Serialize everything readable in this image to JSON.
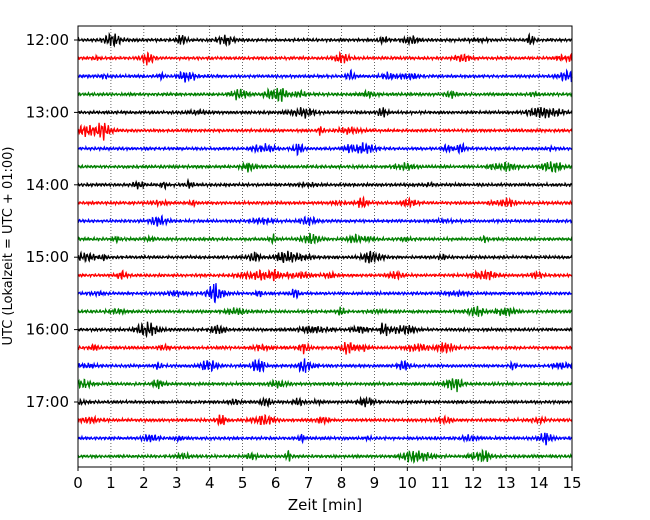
{
  "chart_data": {
    "type": "line",
    "title": "",
    "xlabel": "Zeit  [min]",
    "ylabel": "UTC (Lokalzeit = UTC + 01:00)",
    "xlim": [
      0,
      15
    ],
    "x_ticks": [
      "0",
      "1",
      "2",
      "3",
      "4",
      "5",
      "6",
      "7",
      "8",
      "9",
      "10",
      "11",
      "12",
      "13",
      "14",
      "15"
    ],
    "y_ticks": [
      "12:00",
      "13:00",
      "14:00",
      "15:00",
      "16:00",
      "17:00"
    ],
    "grid": "vertical dotted at each minute",
    "trace_interval_minutes": 15,
    "trace_colors": [
      "#000000",
      "#ff0000",
      "#0000ff",
      "#008000"
    ],
    "series": [
      {
        "start": "12:00",
        "color": "#000000"
      },
      {
        "start": "12:15",
        "color": "#ff0000"
      },
      {
        "start": "12:30",
        "color": "#0000ff"
      },
      {
        "start": "12:45",
        "color": "#008000"
      },
      {
        "start": "13:00",
        "color": "#000000"
      },
      {
        "start": "13:15",
        "color": "#ff0000"
      },
      {
        "start": "13:30",
        "color": "#0000ff"
      },
      {
        "start": "13:45",
        "color": "#008000"
      },
      {
        "start": "14:00",
        "color": "#000000"
      },
      {
        "start": "14:15",
        "color": "#ff0000"
      },
      {
        "start": "14:30",
        "color": "#0000ff"
      },
      {
        "start": "14:45",
        "color": "#008000"
      },
      {
        "start": "15:00",
        "color": "#000000"
      },
      {
        "start": "15:15",
        "color": "#ff0000"
      },
      {
        "start": "15:30",
        "color": "#0000ff"
      },
      {
        "start": "15:45",
        "color": "#008000"
      },
      {
        "start": "16:00",
        "color": "#000000"
      },
      {
        "start": "16:15",
        "color": "#ff0000"
      },
      {
        "start": "16:30",
        "color": "#0000ff"
      },
      {
        "start": "16:45",
        "color": "#008000"
      },
      {
        "start": "17:00",
        "color": "#000000"
      },
      {
        "start": "17:15",
        "color": "#ff0000"
      },
      {
        "start": "17:30",
        "color": "#0000ff"
      },
      {
        "start": "17:45",
        "color": "#008000"
      }
    ]
  }
}
